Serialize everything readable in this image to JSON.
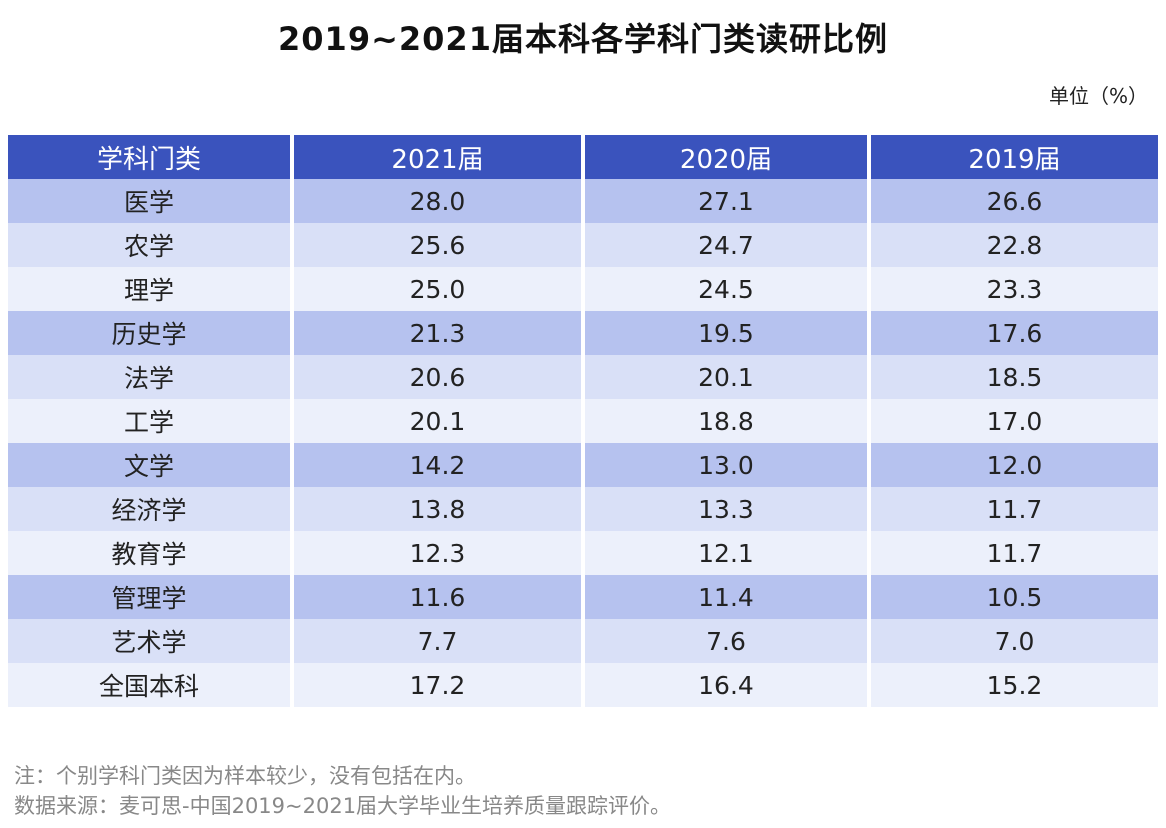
{
  "title": "2019~2021届本科各学科门类读研比例",
  "unit": "单位（%）",
  "colors": {
    "header_bg": "#3a53bd",
    "row_dark": "#b6c2ef",
    "row_mid": "#d9e0f7",
    "row_light": "#ecf0fb"
  },
  "chart_data": {
    "type": "table",
    "title": "2019~2021届本科各学科门类读研比例",
    "columns": [
      "学科门类",
      "2021届",
      "2020届",
      "2019届"
    ],
    "rows": [
      [
        "医学",
        "28.0",
        "27.1",
        "26.6"
      ],
      [
        "农学",
        "25.6",
        "24.7",
        "22.8"
      ],
      [
        "理学",
        "25.0",
        "24.5",
        "23.3"
      ],
      [
        "历史学",
        "21.3",
        "19.5",
        "17.6"
      ],
      [
        "法学",
        "20.6",
        "20.1",
        "18.5"
      ],
      [
        "工学",
        "20.1",
        "18.8",
        "17.0"
      ],
      [
        "文学",
        "14.2",
        "13.0",
        "12.0"
      ],
      [
        "经济学",
        "13.8",
        "13.3",
        "11.7"
      ],
      [
        "教育学",
        "12.3",
        "12.1",
        "11.7"
      ],
      [
        "管理学",
        "11.6",
        "11.4",
        "10.5"
      ],
      [
        "艺术学",
        "7.7",
        "7.6",
        "7.0"
      ],
      [
        "全国本科",
        "17.2",
        "16.4",
        "15.2"
      ]
    ]
  },
  "notes": {
    "note": "注：个别学科门类因为样本较少，没有包括在内。",
    "source": "数据来源：麦可思-中国2019~2021届大学毕业生培养质量跟踪评价。"
  }
}
